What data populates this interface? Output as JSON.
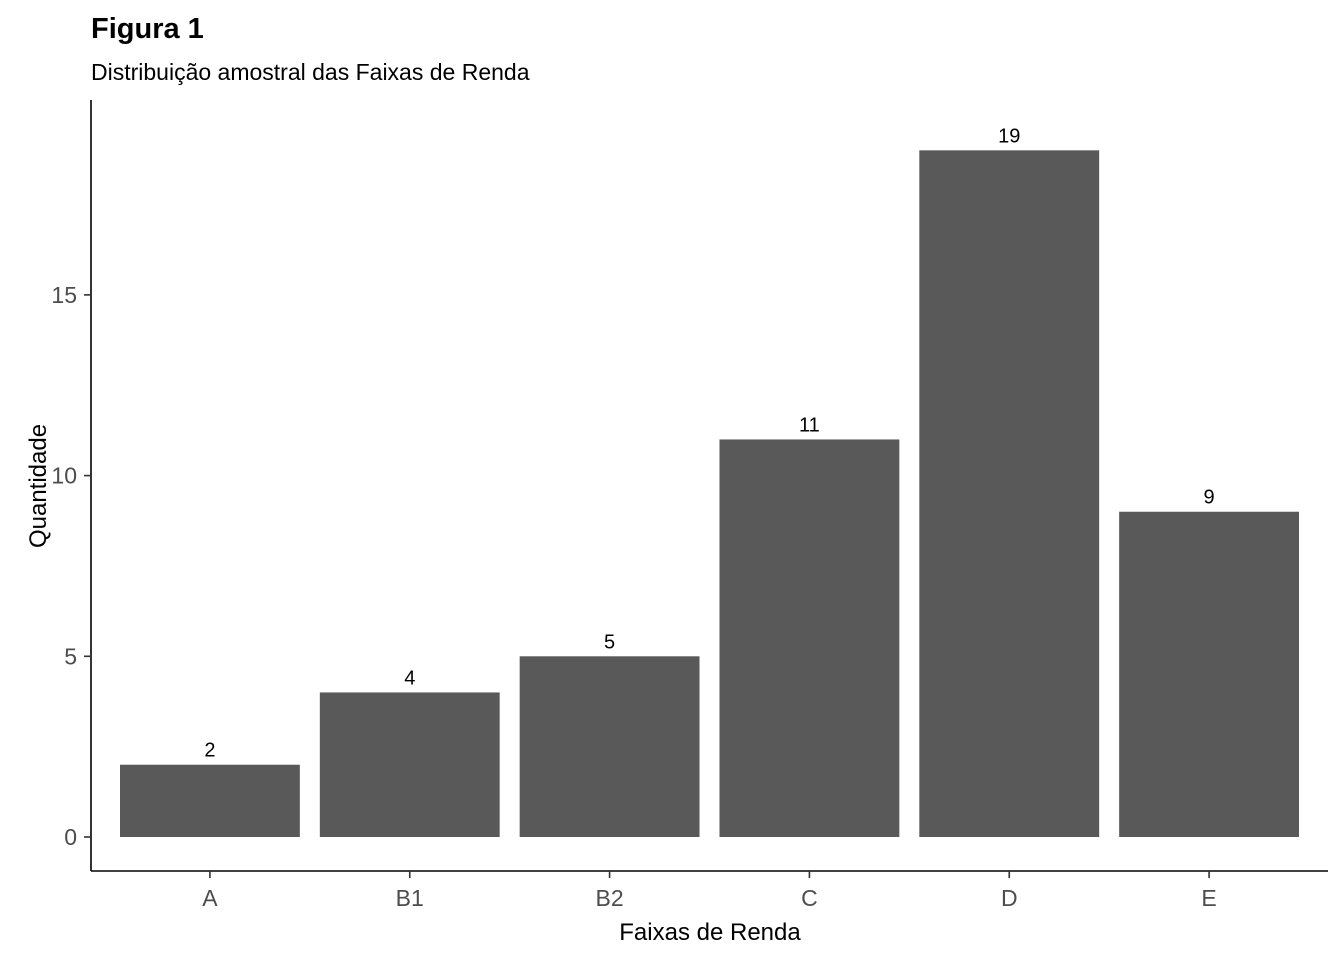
{
  "chart_data": {
    "type": "bar",
    "title": "Figura 1",
    "subtitle": "Distribuição amostral das Faixas de Renda",
    "xlabel": "Faixas de Renda",
    "ylabel": "Quantidade",
    "categories": [
      "A",
      "B1",
      "B2",
      "C",
      "D",
      "E"
    ],
    "values": [
      2,
      4,
      5,
      11,
      19,
      9
    ],
    "ylim": [
      0,
      19.95
    ],
    "yticks": [
      0,
      5,
      10,
      15
    ],
    "grid": false,
    "legend": "none",
    "bar_color": "#595959"
  }
}
